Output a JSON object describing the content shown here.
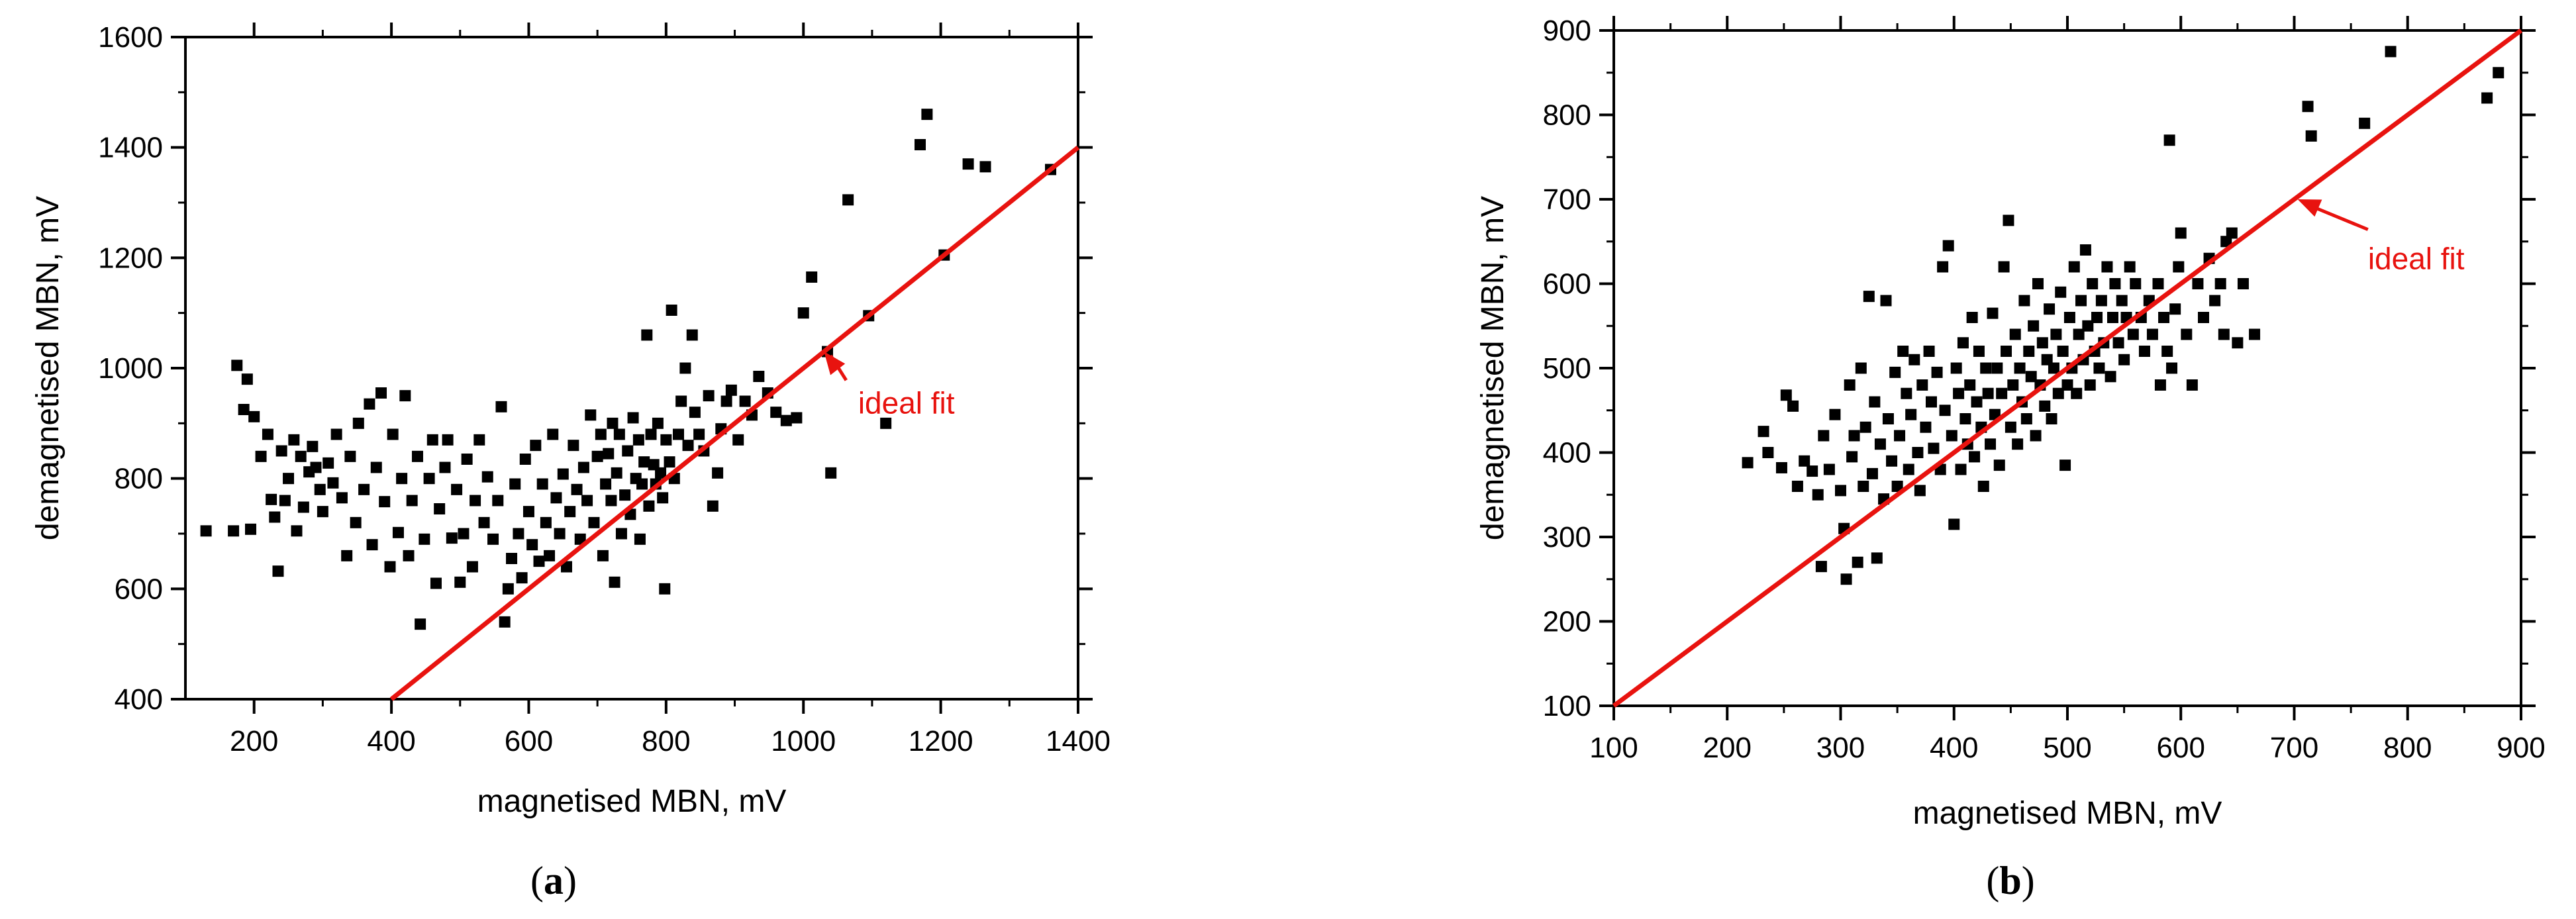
{
  "chart_data": [
    {
      "panel_label": "a",
      "type": "scatter",
      "xlabel": "magnetised MBN, mV",
      "ylabel": "demagnetised MBN, mV",
      "xlim": [
        100,
        1400
      ],
      "ylim": [
        400,
        1600
      ],
      "xticks": [
        200,
        400,
        600,
        800,
        1000,
        1200,
        1400
      ],
      "yticks": [
        400,
        600,
        800,
        1000,
        1200,
        1400,
        1600
      ],
      "fit_line": {
        "x": [
          400,
          1400
        ],
        "y": [
          400,
          1400
        ],
        "color": "#e8130f"
      },
      "annotation": {
        "text": "ideal fit",
        "x": 1070,
        "y": 930,
        "arrow_to": [
          1030,
          1030
        ]
      },
      "marker_color": "#000000",
      "points": [
        [
          130,
          705
        ],
        [
          170,
          705
        ],
        [
          175,
          1005
        ],
        [
          185,
          925
        ],
        [
          190,
          980
        ],
        [
          195,
          708
        ],
        [
          200,
          912
        ],
        [
          210,
          840
        ],
        [
          220,
          880
        ],
        [
          225,
          762
        ],
        [
          230,
          730
        ],
        [
          235,
          632
        ],
        [
          240,
          850
        ],
        [
          245,
          760
        ],
        [
          250,
          800
        ],
        [
          258,
          870
        ],
        [
          262,
          705
        ],
        [
          268,
          840
        ],
        [
          272,
          748
        ],
        [
          280,
          812
        ],
        [
          285,
          858
        ],
        [
          290,
          820
        ],
        [
          296,
          780
        ],
        [
          300,
          740
        ],
        [
          308,
          828
        ],
        [
          315,
          792
        ],
        [
          320,
          880
        ],
        [
          328,
          765
        ],
        [
          335,
          660
        ],
        [
          340,
          840
        ],
        [
          348,
          720
        ],
        [
          352,
          900
        ],
        [
          360,
          780
        ],
        [
          368,
          935
        ],
        [
          372,
          680
        ],
        [
          378,
          820
        ],
        [
          385,
          955
        ],
        [
          390,
          758
        ],
        [
          398,
          640
        ],
        [
          402,
          880
        ],
        [
          410,
          702
        ],
        [
          415,
          800
        ],
        [
          420,
          950
        ],
        [
          425,
          660
        ],
        [
          430,
          760
        ],
        [
          438,
          840
        ],
        [
          442,
          536
        ],
        [
          448,
          690
        ],
        [
          455,
          800
        ],
        [
          460,
          870
        ],
        [
          465,
          610
        ],
        [
          470,
          745
        ],
        [
          478,
          820
        ],
        [
          482,
          870
        ],
        [
          488,
          692
        ],
        [
          495,
          780
        ],
        [
          500,
          612
        ],
        [
          505,
          700
        ],
        [
          510,
          835
        ],
        [
          518,
          640
        ],
        [
          522,
          760
        ],
        [
          528,
          870
        ],
        [
          535,
          720
        ],
        [
          540,
          803
        ],
        [
          548,
          690
        ],
        [
          555,
          760
        ],
        [
          560,
          930
        ],
        [
          565,
          540
        ],
        [
          570,
          600
        ],
        [
          575,
          655
        ],
        [
          580,
          790
        ],
        [
          585,
          700
        ],
        [
          590,
          620
        ],
        [
          595,
          835
        ],
        [
          600,
          740
        ],
        [
          605,
          680
        ],
        [
          610,
          860
        ],
        [
          615,
          650
        ],
        [
          620,
          790
        ],
        [
          625,
          720
        ],
        [
          630,
          660
        ],
        [
          635,
          880
        ],
        [
          640,
          765
        ],
        [
          645,
          700
        ],
        [
          650,
          808
        ],
        [
          655,
          640
        ],
        [
          660,
          740
        ],
        [
          665,
          860
        ],
        [
          670,
          780
        ],
        [
          675,
          690
        ],
        [
          680,
          820
        ],
        [
          685,
          760
        ],
        [
          690,
          915
        ],
        [
          695,
          720
        ],
        [
          700,
          840
        ],
        [
          705,
          880
        ],
        [
          708,
          660
        ],
        [
          712,
          790
        ],
        [
          716,
          845
        ],
        [
          720,
          760
        ],
        [
          722,
          900
        ],
        [
          725,
          612
        ],
        [
          728,
          810
        ],
        [
          732,
          880
        ],
        [
          735,
          700
        ],
        [
          740,
          770
        ],
        [
          744,
          850
        ],
        [
          748,
          735
        ],
        [
          752,
          910
        ],
        [
          756,
          800
        ],
        [
          760,
          870
        ],
        [
          762,
          690
        ],
        [
          765,
          790
        ],
        [
          768,
          830
        ],
        [
          772,
          1060
        ],
        [
          775,
          750
        ],
        [
          778,
          880
        ],
        [
          782,
          825
        ],
        [
          785,
          790
        ],
        [
          788,
          900
        ],
        [
          792,
          810
        ],
        [
          795,
          765
        ],
        [
          798,
          600
        ],
        [
          800,
          870
        ],
        [
          805,
          830
        ],
        [
          808,
          1105
        ],
        [
          812,
          800
        ],
        [
          818,
          880
        ],
        [
          822,
          940
        ],
        [
          828,
          1000
        ],
        [
          832,
          860
        ],
        [
          838,
          1060
        ],
        [
          842,
          920
        ],
        [
          848,
          880
        ],
        [
          855,
          850
        ],
        [
          862,
          950
        ],
        [
          868,
          750
        ],
        [
          875,
          810
        ],
        [
          880,
          890
        ],
        [
          888,
          940
        ],
        [
          895,
          960
        ],
        [
          905,
          870
        ],
        [
          915,
          940
        ],
        [
          925,
          915
        ],
        [
          935,
          985
        ],
        [
          948,
          955
        ],
        [
          960,
          920
        ],
        [
          975,
          905
        ],
        [
          990,
          910
        ],
        [
          1000,
          1100
        ],
        [
          1012,
          1165
        ],
        [
          1035,
          1030
        ],
        [
          1040,
          810
        ],
        [
          1065,
          1305
        ],
        [
          1095,
          1095
        ],
        [
          1120,
          900
        ],
        [
          1170,
          1405
        ],
        [
          1180,
          1460
        ],
        [
          1205,
          1205
        ],
        [
          1240,
          1370
        ],
        [
          1265,
          1365
        ],
        [
          1360,
          1360
        ]
      ]
    },
    {
      "panel_label": "b",
      "type": "scatter",
      "xlabel": "magnetised MBN, mV",
      "ylabel": "demagnetised MBN, mV",
      "xlim": [
        100,
        900
      ],
      "ylim": [
        100,
        900
      ],
      "xticks": [
        100,
        200,
        300,
        400,
        500,
        600,
        700,
        800,
        900
      ],
      "yticks": [
        100,
        200,
        300,
        400,
        500,
        600,
        700,
        800,
        900
      ],
      "fit_line": {
        "x": [
          100,
          900
        ],
        "y": [
          100,
          900
        ],
        "color": "#e8130f"
      },
      "annotation": {
        "text": "ideal fit",
        "x": 765,
        "y": 625,
        "arrow_to": [
          703,
          700
        ]
      },
      "marker_color": "#000000",
      "points": [
        [
          218,
          388
        ],
        [
          232,
          425
        ],
        [
          236,
          400
        ],
        [
          248,
          382
        ],
        [
          252,
          468
        ],
        [
          258,
          455
        ],
        [
          262,
          360
        ],
        [
          268,
          390
        ],
        [
          275,
          378
        ],
        [
          280,
          350
        ],
        [
          283,
          265
        ],
        [
          285,
          420
        ],
        [
          290,
          380
        ],
        [
          295,
          445
        ],
        [
          300,
          355
        ],
        [
          303,
          310
        ],
        [
          305,
          250
        ],
        [
          308,
          480
        ],
        [
          310,
          395
        ],
        [
          312,
          420
        ],
        [
          315,
          270
        ],
        [
          318,
          500
        ],
        [
          320,
          360
        ],
        [
          322,
          430
        ],
        [
          325,
          585
        ],
        [
          328,
          375
        ],
        [
          330,
          460
        ],
        [
          332,
          275
        ],
        [
          335,
          410
        ],
        [
          338,
          345
        ],
        [
          340,
          580
        ],
        [
          342,
          440
        ],
        [
          345,
          390
        ],
        [
          348,
          495
        ],
        [
          350,
          360
        ],
        [
          352,
          420
        ],
        [
          355,
          520
        ],
        [
          358,
          470
        ],
        [
          360,
          380
        ],
        [
          362,
          445
        ],
        [
          365,
          510
        ],
        [
          368,
          400
        ],
        [
          370,
          355
        ],
        [
          372,
          480
        ],
        [
          375,
          430
        ],
        [
          378,
          520
        ],
        [
          380,
          460
        ],
        [
          382,
          405
        ],
        [
          385,
          495
        ],
        [
          388,
          380
        ],
        [
          390,
          620
        ],
        [
          392,
          450
        ],
        [
          395,
          645
        ],
        [
          398,
          420
        ],
        [
          400,
          315
        ],
        [
          402,
          500
        ],
        [
          404,
          470
        ],
        [
          406,
          380
        ],
        [
          408,
          530
        ],
        [
          410,
          440
        ],
        [
          412,
          410
        ],
        [
          414,
          480
        ],
        [
          416,
          560
        ],
        [
          418,
          395
        ],
        [
          420,
          460
        ],
        [
          422,
          520
        ],
        [
          424,
          430
        ],
        [
          426,
          360
        ],
        [
          428,
          500
        ],
        [
          430,
          470
        ],
        [
          432,
          410
        ],
        [
          434,
          565
        ],
        [
          436,
          445
        ],
        [
          438,
          500
        ],
        [
          440,
          385
        ],
        [
          442,
          470
        ],
        [
          444,
          620
        ],
        [
          446,
          520
        ],
        [
          448,
          675
        ],
        [
          450,
          430
        ],
        [
          452,
          480
        ],
        [
          454,
          540
        ],
        [
          456,
          410
        ],
        [
          458,
          500
        ],
        [
          460,
          460
        ],
        [
          462,
          580
        ],
        [
          464,
          440
        ],
        [
          466,
          520
        ],
        [
          468,
          490
        ],
        [
          470,
          550
        ],
        [
          472,
          420
        ],
        [
          474,
          600
        ],
        [
          476,
          480
        ],
        [
          478,
          530
        ],
        [
          480,
          455
        ],
        [
          482,
          510
        ],
        [
          484,
          570
        ],
        [
          486,
          440
        ],
        [
          488,
          500
        ],
        [
          490,
          540
        ],
        [
          492,
          470
        ],
        [
          494,
          590
        ],
        [
          496,
          520
        ],
        [
          498,
          385
        ],
        [
          500,
          480
        ],
        [
          502,
          560
        ],
        [
          504,
          500
        ],
        [
          506,
          620
        ],
        [
          508,
          470
        ],
        [
          510,
          540
        ],
        [
          512,
          580
        ],
        [
          514,
          510
        ],
        [
          516,
          640
        ],
        [
          518,
          550
        ],
        [
          520,
          480
        ],
        [
          522,
          600
        ],
        [
          524,
          520
        ],
        [
          526,
          560
        ],
        [
          528,
          500
        ],
        [
          530,
          580
        ],
        [
          532,
          530
        ],
        [
          535,
          620
        ],
        [
          538,
          490
        ],
        [
          540,
          560
        ],
        [
          542,
          600
        ],
        [
          545,
          530
        ],
        [
          548,
          580
        ],
        [
          550,
          510
        ],
        [
          552,
          560
        ],
        [
          555,
          620
        ],
        [
          558,
          540
        ],
        [
          560,
          600
        ],
        [
          565,
          560
        ],
        [
          568,
          520
        ],
        [
          572,
          580
        ],
        [
          575,
          540
        ],
        [
          580,
          600
        ],
        [
          582,
          480
        ],
        [
          585,
          560
        ],
        [
          588,
          520
        ],
        [
          590,
          770
        ],
        [
          592,
          500
        ],
        [
          595,
          570
        ],
        [
          598,
          620
        ],
        [
          600,
          660
        ],
        [
          605,
          540
        ],
        [
          610,
          480
        ],
        [
          615,
          600
        ],
        [
          620,
          560
        ],
        [
          625,
          630
        ],
        [
          630,
          580
        ],
        [
          635,
          600
        ],
        [
          638,
          540
        ],
        [
          640,
          650
        ],
        [
          645,
          660
        ],
        [
          650,
          530
        ],
        [
          655,
          600
        ],
        [
          665,
          540
        ],
        [
          712,
          810
        ],
        [
          715,
          775
        ],
        [
          762,
          790
        ],
        [
          785,
          875
        ],
        [
          870,
          820
        ],
        [
          880,
          850
        ]
      ]
    }
  ]
}
